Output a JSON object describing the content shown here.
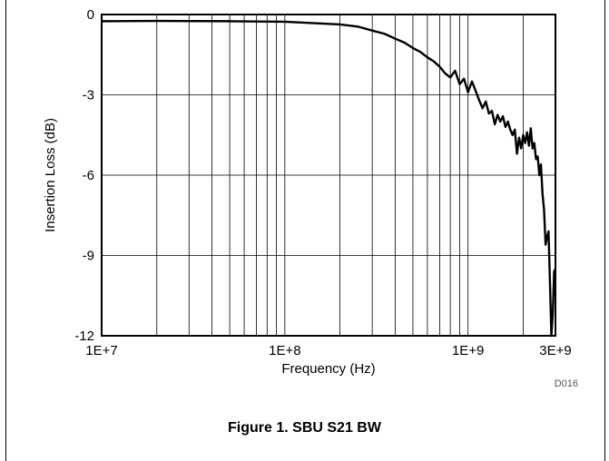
{
  "chart_data": {
    "type": "line",
    "xlabel": "Frequency (Hz)",
    "ylabel": "Insertion Loss (dB)",
    "xscale": "log",
    "xlim": [
      10000000,
      3000000000
    ],
    "ylim": [
      -12,
      0
    ],
    "grid": true,
    "x_tick_labels": [
      "1E+7",
      "1E+8",
      "1E+9",
      "3E+9"
    ],
    "x_tick_values": [
      10000000,
      100000000,
      1000000000,
      3000000000
    ],
    "y_tick_labels": [
      "0",
      "-3",
      "-6",
      "-9",
      "-12"
    ],
    "y_tick_values": [
      0,
      -3,
      -6,
      -9,
      -12
    ],
    "line_color": "#000000",
    "series": [
      {
        "points": [
          [
            10000000,
            -0.25
          ],
          [
            20000000,
            -0.24
          ],
          [
            50000000,
            -0.25
          ],
          [
            100000000,
            -0.27
          ],
          [
            150000000,
            -0.33
          ],
          [
            200000000,
            -0.37
          ],
          [
            250000000,
            -0.45
          ],
          [
            300000000,
            -0.6
          ],
          [
            350000000,
            -0.72
          ],
          [
            400000000,
            -0.9
          ],
          [
            450000000,
            -1.05
          ],
          [
            500000000,
            -1.25
          ],
          [
            550000000,
            -1.4
          ],
          [
            600000000,
            -1.6
          ],
          [
            650000000,
            -1.75
          ],
          [
            700000000,
            -1.95
          ],
          [
            750000000,
            -2.2
          ],
          [
            800000000,
            -2.35
          ],
          [
            850000000,
            -2.1
          ],
          [
            900000000,
            -2.6
          ],
          [
            950000000,
            -2.4
          ],
          [
            1000000000,
            -2.9
          ],
          [
            1050000000,
            -2.5
          ],
          [
            1100000000,
            -2.85
          ],
          [
            1150000000,
            -3.2
          ],
          [
            1200000000,
            -3.5
          ],
          [
            1250000000,
            -3.25
          ],
          [
            1300000000,
            -3.7
          ],
          [
            1350000000,
            -3.6
          ],
          [
            1400000000,
            -4.1
          ],
          [
            1450000000,
            -3.75
          ],
          [
            1500000000,
            -4.0
          ],
          [
            1550000000,
            -3.8
          ],
          [
            1600000000,
            -4.2
          ],
          [
            1650000000,
            -4.0
          ],
          [
            1700000000,
            -4.3
          ],
          [
            1750000000,
            -4.5
          ],
          [
            1800000000,
            -4.3
          ],
          [
            1850000000,
            -5.2
          ],
          [
            1900000000,
            -4.6
          ],
          [
            1950000000,
            -5.0
          ],
          [
            2000000000,
            -4.5
          ],
          [
            2050000000,
            -4.8
          ],
          [
            2100000000,
            -4.4
          ],
          [
            2150000000,
            -4.9
          ],
          [
            2200000000,
            -4.25
          ],
          [
            2250000000,
            -5.0
          ],
          [
            2300000000,
            -4.8
          ],
          [
            2350000000,
            -5.4
          ],
          [
            2400000000,
            -5.3
          ],
          [
            2450000000,
            -6.0
          ],
          [
            2500000000,
            -5.6
          ],
          [
            2550000000,
            -6.7
          ],
          [
            2600000000,
            -7.3
          ],
          [
            2650000000,
            -8.6
          ],
          [
            2700000000,
            -8.3
          ],
          [
            2750000000,
            -8.1
          ],
          [
            2800000000,
            -10.0
          ],
          [
            2850000000,
            -12.0
          ],
          [
            2900000000,
            -11.2
          ],
          [
            2950000000,
            -9.6
          ],
          [
            3000000000,
            -9.5
          ]
        ]
      }
    ]
  },
  "chart_code": "D016",
  "figure_caption": "Figure 1. SBU S21 BW"
}
